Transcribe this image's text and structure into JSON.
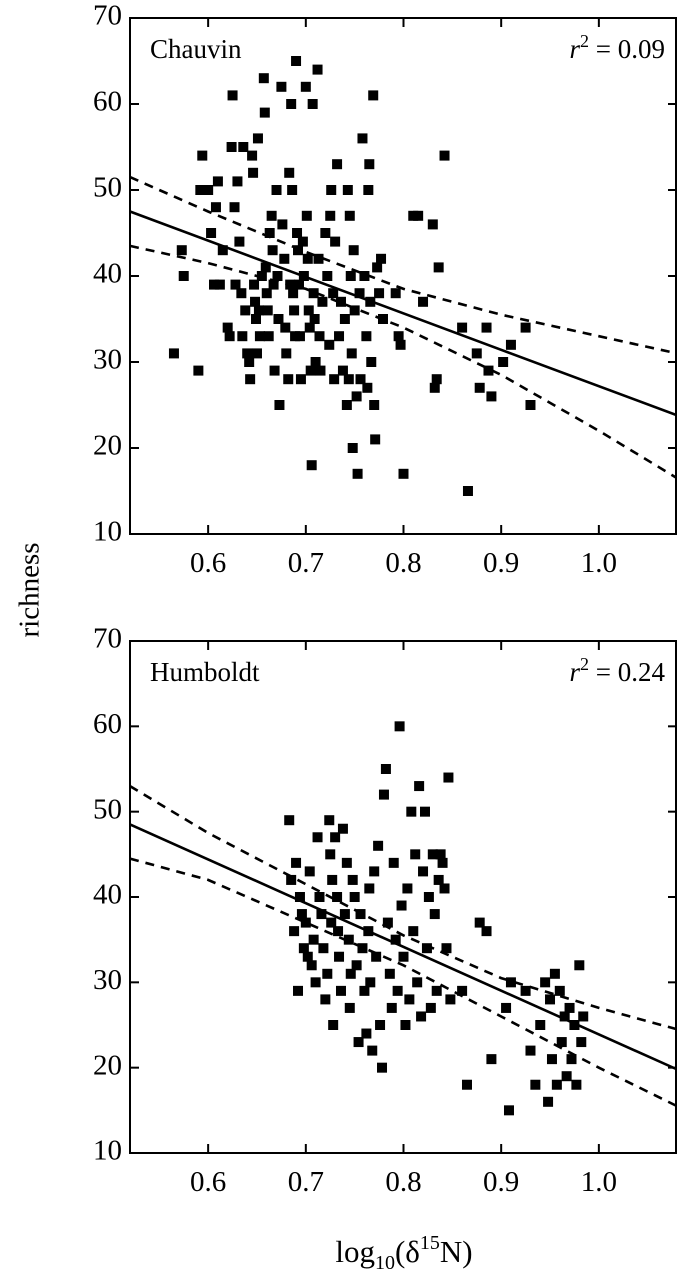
{
  "figure": {
    "ylabel": "richness",
    "xlabel": {
      "main": "log",
      "sub": "10",
      "open": "(δ",
      "sup": "15",
      "close": "N)"
    }
  },
  "chart_data": [
    {
      "type": "scatter",
      "title": "Chauvin",
      "r2": {
        "r": "r",
        "sup": "2",
        "rest": " = 0.09"
      },
      "xlim": [
        0.52,
        1.08
      ],
      "ylim": [
        10,
        70
      ],
      "xticks": [
        "0.6",
        "0.7",
        "0.8",
        "0.9",
        "1.0"
      ],
      "yticks": [
        "10",
        "20",
        "30",
        "40",
        "50",
        "60",
        "70"
      ],
      "fit_line": {
        "x": [
          0.52,
          1.08
        ],
        "y": [
          47.5,
          23.8
        ]
      },
      "ci_upper": {
        "x": [
          0.52,
          0.6,
          0.7,
          0.8,
          0.9,
          1.0,
          1.08
        ],
        "y": [
          51.5,
          47.5,
          42.8,
          38.5,
          35.5,
          33.0,
          31.0
        ]
      },
      "ci_lower": {
        "x": [
          0.52,
          0.6,
          0.7,
          0.8,
          0.9,
          1.0,
          1.08
        ],
        "y": [
          43.5,
          41.5,
          38.5,
          34.0,
          28.5,
          22.0,
          16.5
        ]
      },
      "points": [
        [
          0.565,
          31
        ],
        [
          0.575,
          40
        ],
        [
          0.573,
          43
        ],
        [
          0.59,
          29
        ],
        [
          0.594,
          54
        ],
        [
          0.592,
          50
        ],
        [
          0.6,
          50
        ],
        [
          0.603,
          45
        ],
        [
          0.606,
          39
        ],
        [
          0.608,
          48
        ],
        [
          0.61,
          51
        ],
        [
          0.612,
          39
        ],
        [
          0.615,
          43
        ],
        [
          0.62,
          34
        ],
        [
          0.622,
          33
        ],
        [
          0.624,
          55
        ],
        [
          0.625,
          61
        ],
        [
          0.627,
          48
        ],
        [
          0.628,
          39
        ],
        [
          0.63,
          51
        ],
        [
          0.632,
          44
        ],
        [
          0.634,
          38
        ],
        [
          0.635,
          33
        ],
        [
          0.636,
          55
        ],
        [
          0.638,
          36
        ],
        [
          0.64,
          31
        ],
        [
          0.642,
          30
        ],
        [
          0.643,
          28
        ],
        [
          0.645,
          54
        ],
        [
          0.646,
          52
        ],
        [
          0.647,
          39
        ],
        [
          0.648,
          37
        ],
        [
          0.649,
          35
        ],
        [
          0.65,
          31
        ],
        [
          0.651,
          56
        ],
        [
          0.652,
          36
        ],
        [
          0.653,
          33
        ],
        [
          0.655,
          40
        ],
        [
          0.657,
          63
        ],
        [
          0.658,
          59
        ],
        [
          0.659,
          41
        ],
        [
          0.66,
          38
        ],
        [
          0.661,
          36
        ],
        [
          0.662,
          33
        ],
        [
          0.663,
          45
        ],
        [
          0.665,
          47
        ],
        [
          0.666,
          43
        ],
        [
          0.667,
          39
        ],
        [
          0.668,
          29
        ],
        [
          0.67,
          50
        ],
        [
          0.671,
          40
        ],
        [
          0.672,
          35
        ],
        [
          0.673,
          25
        ],
        [
          0.675,
          62
        ],
        [
          0.676,
          46
        ],
        [
          0.678,
          42
        ],
        [
          0.679,
          34
        ],
        [
          0.68,
          31
        ],
        [
          0.682,
          28
        ],
        [
          0.683,
          52
        ],
        [
          0.684,
          39
        ],
        [
          0.685,
          60
        ],
        [
          0.686,
          50
        ],
        [
          0.687,
          38
        ],
        [
          0.688,
          36
        ],
        [
          0.689,
          33
        ],
        [
          0.69,
          65
        ],
        [
          0.691,
          45
        ],
        [
          0.692,
          43
        ],
        [
          0.693,
          39
        ],
        [
          0.694,
          33
        ],
        [
          0.695,
          28
        ],
        [
          0.697,
          44
        ],
        [
          0.698,
          40
        ],
        [
          0.7,
          62
        ],
        [
          0.701,
          47
        ],
        [
          0.702,
          42
        ],
        [
          0.703,
          36
        ],
        [
          0.704,
          34
        ],
        [
          0.705,
          29
        ],
        [
          0.706,
          18
        ],
        [
          0.707,
          60
        ],
        [
          0.708,
          38
        ],
        [
          0.709,
          35
        ],
        [
          0.71,
          30
        ],
        [
          0.712,
          64
        ],
        [
          0.713,
          42
        ],
        [
          0.714,
          33
        ],
        [
          0.715,
          29
        ],
        [
          0.717,
          37
        ],
        [
          0.72,
          45
        ],
        [
          0.722,
          40
        ],
        [
          0.724,
          32
        ],
        [
          0.725,
          47
        ],
        [
          0.726,
          50
        ],
        [
          0.728,
          38
        ],
        [
          0.729,
          28
        ],
        [
          0.73,
          44
        ],
        [
          0.732,
          53
        ],
        [
          0.734,
          33
        ],
        [
          0.736,
          37
        ],
        [
          0.738,
          29
        ],
        [
          0.74,
          35
        ],
        [
          0.742,
          25
        ],
        [
          0.743,
          50
        ],
        [
          0.744,
          28
        ],
        [
          0.745,
          47
        ],
        [
          0.746,
          40
        ],
        [
          0.747,
          31
        ],
        [
          0.748,
          20
        ],
        [
          0.749,
          43
        ],
        [
          0.75,
          36
        ],
        [
          0.752,
          26
        ],
        [
          0.753,
          17
        ],
        [
          0.755,
          38
        ],
        [
          0.756,
          28
        ],
        [
          0.758,
          56
        ],
        [
          0.76,
          40
        ],
        [
          0.762,
          33
        ],
        [
          0.763,
          27
        ],
        [
          0.764,
          50
        ],
        [
          0.765,
          53
        ],
        [
          0.766,
          37
        ],
        [
          0.767,
          30
        ],
        [
          0.769,
          61
        ],
        [
          0.77,
          25
        ],
        [
          0.771,
          21
        ],
        [
          0.773,
          41
        ],
        [
          0.775,
          38
        ],
        [
          0.777,
          42
        ],
        [
          0.779,
          35
        ],
        [
          0.792,
          38
        ],
        [
          0.795,
          33
        ],
        [
          0.797,
          32
        ],
        [
          0.8,
          17
        ],
        [
          0.81,
          47
        ],
        [
          0.815,
          47
        ],
        [
          0.82,
          37
        ],
        [
          0.83,
          46
        ],
        [
          0.832,
          27
        ],
        [
          0.834,
          28
        ],
        [
          0.836,
          41
        ],
        [
          0.842,
          54
        ],
        [
          0.86,
          34
        ],
        [
          0.866,
          15
        ],
        [
          0.875,
          31
        ],
        [
          0.878,
          27
        ],
        [
          0.885,
          34
        ],
        [
          0.887,
          29
        ],
        [
          0.89,
          26
        ],
        [
          0.902,
          30
        ],
        [
          0.91,
          32
        ],
        [
          0.925,
          34
        ],
        [
          0.93,
          25
        ]
      ]
    },
    {
      "type": "scatter",
      "title": "Humboldt",
      "r2": {
        "r": "r",
        "sup": "2",
        "rest": " = 0.24"
      },
      "xlim": [
        0.52,
        1.08
      ],
      "ylim": [
        10,
        70
      ],
      "xticks": [
        "0.6",
        "0.7",
        "0.8",
        "0.9",
        "1.0"
      ],
      "yticks": [
        "10",
        "20",
        "30",
        "40",
        "50",
        "60",
        "70"
      ],
      "fit_line": {
        "x": [
          0.52,
          1.08
        ],
        "y": [
          48.5,
          19.8
        ]
      },
      "ci_upper": {
        "x": [
          0.52,
          0.6,
          0.7,
          0.8,
          0.9,
          1.0,
          1.08
        ],
        "y": [
          53.0,
          47.5,
          41.5,
          35.5,
          30.5,
          27.0,
          24.5
        ]
      },
      "ci_lower": {
        "x": [
          0.52,
          0.6,
          0.7,
          0.8,
          0.9,
          1.0,
          1.08
        ],
        "y": [
          44.5,
          42.0,
          37.0,
          32.0,
          26.0,
          20.0,
          15.5
        ]
      },
      "points": [
        [
          0.683,
          49
        ],
        [
          0.685,
          42
        ],
        [
          0.688,
          36
        ],
        [
          0.69,
          44
        ],
        [
          0.692,
          29
        ],
        [
          0.694,
          40
        ],
        [
          0.696,
          38
        ],
        [
          0.698,
          34
        ],
        [
          0.7,
          37
        ],
        [
          0.702,
          33
        ],
        [
          0.704,
          43
        ],
        [
          0.706,
          32
        ],
        [
          0.708,
          35
        ],
        [
          0.71,
          30
        ],
        [
          0.712,
          47
        ],
        [
          0.714,
          40
        ],
        [
          0.716,
          38
        ],
        [
          0.718,
          34
        ],
        [
          0.72,
          28
        ],
        [
          0.722,
          31
        ],
        [
          0.724,
          49
        ],
        [
          0.725,
          45
        ],
        [
          0.726,
          37
        ],
        [
          0.727,
          42
        ],
        [
          0.728,
          25
        ],
        [
          0.73,
          47
        ],
        [
          0.732,
          40
        ],
        [
          0.733,
          36
        ],
        [
          0.734,
          33
        ],
        [
          0.736,
          29
        ],
        [
          0.738,
          48
        ],
        [
          0.74,
          38
        ],
        [
          0.742,
          44
        ],
        [
          0.744,
          35
        ],
        [
          0.745,
          27
        ],
        [
          0.746,
          31
        ],
        [
          0.748,
          42
        ],
        [
          0.75,
          40
        ],
        [
          0.752,
          32
        ],
        [
          0.754,
          23
        ],
        [
          0.756,
          38
        ],
        [
          0.758,
          34
        ],
        [
          0.76,
          29
        ],
        [
          0.762,
          24
        ],
        [
          0.764,
          36
        ],
        [
          0.765,
          41
        ],
        [
          0.766,
          30
        ],
        [
          0.768,
          22
        ],
        [
          0.77,
          43
        ],
        [
          0.772,
          33
        ],
        [
          0.774,
          46
        ],
        [
          0.776,
          25
        ],
        [
          0.778,
          20
        ],
        [
          0.78,
          52
        ],
        [
          0.782,
          55
        ],
        [
          0.784,
          37
        ],
        [
          0.786,
          31
        ],
        [
          0.788,
          27
        ],
        [
          0.79,
          44
        ],
        [
          0.792,
          35
        ],
        [
          0.794,
          29
        ],
        [
          0.796,
          60
        ],
        [
          0.798,
          39
        ],
        [
          0.8,
          33
        ],
        [
          0.802,
          25
        ],
        [
          0.804,
          41
        ],
        [
          0.806,
          28
        ],
        [
          0.808,
          50
        ],
        [
          0.81,
          36
        ],
        [
          0.812,
          45
        ],
        [
          0.814,
          30
        ],
        [
          0.816,
          53
        ],
        [
          0.818,
          26
        ],
        [
          0.82,
          43
        ],
        [
          0.822,
          50
        ],
        [
          0.824,
          34
        ],
        [
          0.826,
          40
        ],
        [
          0.828,
          27
        ],
        [
          0.83,
          45
        ],
        [
          0.832,
          38
        ],
        [
          0.834,
          29
        ],
        [
          0.836,
          42
        ],
        [
          0.838,
          45
        ],
        [
          0.84,
          44
        ],
        [
          0.842,
          41
        ],
        [
          0.844,
          34
        ],
        [
          0.846,
          54
        ],
        [
          0.848,
          28
        ],
        [
          0.86,
          29
        ],
        [
          0.865,
          18
        ],
        [
          0.878,
          37
        ],
        [
          0.885,
          36
        ],
        [
          0.89,
          21
        ],
        [
          0.905,
          27
        ],
        [
          0.908,
          15
        ],
        [
          0.91,
          30
        ],
        [
          0.925,
          29
        ],
        [
          0.93,
          22
        ],
        [
          0.935,
          18
        ],
        [
          0.94,
          25
        ],
        [
          0.945,
          30
        ],
        [
          0.948,
          16
        ],
        [
          0.95,
          28
        ],
        [
          0.952,
          21
        ],
        [
          0.955,
          31
        ],
        [
          0.957,
          18
        ],
        [
          0.96,
          29
        ],
        [
          0.962,
          23
        ],
        [
          0.965,
          26
        ],
        [
          0.967,
          19
        ],
        [
          0.97,
          27
        ],
        [
          0.972,
          21
        ],
        [
          0.975,
          25
        ],
        [
          0.977,
          18
        ],
        [
          0.98,
          32
        ],
        [
          0.982,
          23
        ],
        [
          0.984,
          26
        ]
      ]
    }
  ]
}
